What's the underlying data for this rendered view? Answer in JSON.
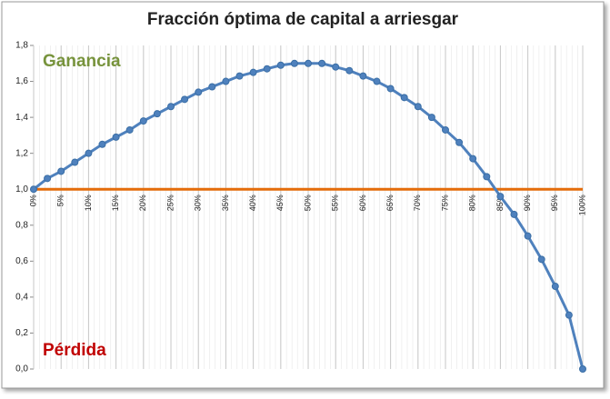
{
  "chart_data": {
    "type": "line",
    "title": "Fracción óptima de capital a arriesgar",
    "annotations": [
      {
        "text": "Ganancia",
        "color": "#77933c"
      },
      {
        "text": "Pérdida",
        "color": "#c00000"
      }
    ],
    "x": [
      0,
      2.5,
      5,
      7.5,
      10,
      12.5,
      15,
      17.5,
      20,
      22.5,
      25,
      27.5,
      30,
      32.5,
      35,
      37.5,
      40,
      42.5,
      45,
      47.5,
      50,
      52.5,
      55,
      57.5,
      60,
      62.5,
      65,
      67.5,
      70,
      72.5,
      75,
      77.5,
      80,
      82.5,
      85,
      87.5,
      90,
      92.5,
      95,
      97.5,
      100
    ],
    "series": [
      {
        "color": "#4f81bd",
        "values": [
          1.0,
          1.06,
          1.1,
          1.15,
          1.2,
          1.25,
          1.29,
          1.33,
          1.38,
          1.42,
          1.46,
          1.5,
          1.54,
          1.57,
          1.6,
          1.63,
          1.65,
          1.67,
          1.69,
          1.7,
          1.7,
          1.7,
          1.68,
          1.66,
          1.63,
          1.6,
          1.56,
          1.51,
          1.46,
          1.4,
          1.33,
          1.26,
          1.17,
          1.07,
          0.96,
          0.86,
          0.74,
          0.61,
          0.46,
          0.3,
          0.0
        ]
      }
    ],
    "reference_line": {
      "value": 1.0,
      "color": "#e46c0a"
    },
    "xlim": [
      0,
      100
    ],
    "xticks": [
      {
        "value": 0,
        "label": "0%"
      },
      {
        "value": 5,
        "label": "5%"
      },
      {
        "value": 10,
        "label": "10%"
      },
      {
        "value": 15,
        "label": "15%"
      },
      {
        "value": 20,
        "label": "20%"
      },
      {
        "value": 25,
        "label": "25%"
      },
      {
        "value": 30,
        "label": "30%"
      },
      {
        "value": 35,
        "label": "35%"
      },
      {
        "value": 40,
        "label": "40%"
      },
      {
        "value": 45,
        "label": "45%"
      },
      {
        "value": 50,
        "label": "50%"
      },
      {
        "value": 55,
        "label": "55%"
      },
      {
        "value": 60,
        "label": "60%"
      },
      {
        "value": 65,
        "label": "65%"
      },
      {
        "value": 70,
        "label": "70%"
      },
      {
        "value": 75,
        "label": "75%"
      },
      {
        "value": 80,
        "label": "80%"
      },
      {
        "value": 85,
        "label": "85%"
      },
      {
        "value": 90,
        "label": "90%"
      },
      {
        "value": 95,
        "label": "95%"
      },
      {
        "value": 100,
        "label": "100%"
      }
    ],
    "ylim": [
      0,
      1.8
    ],
    "yticks": [
      {
        "value": 0,
        "label": "0,0"
      },
      {
        "value": 0.2,
        "label": "0,2"
      },
      {
        "value": 0.4,
        "label": "0,4"
      },
      {
        "value": 0.6,
        "label": "0,6"
      },
      {
        "value": 0.8,
        "label": "0,8"
      },
      {
        "value": 1.0,
        "label": "1,0"
      },
      {
        "value": 1.2,
        "label": "1,2"
      },
      {
        "value": 1.4,
        "label": "1,4"
      },
      {
        "value": 1.6,
        "label": "1,6"
      },
      {
        "value": 1.8,
        "label": "1,8"
      }
    ],
    "grid": true
  }
}
